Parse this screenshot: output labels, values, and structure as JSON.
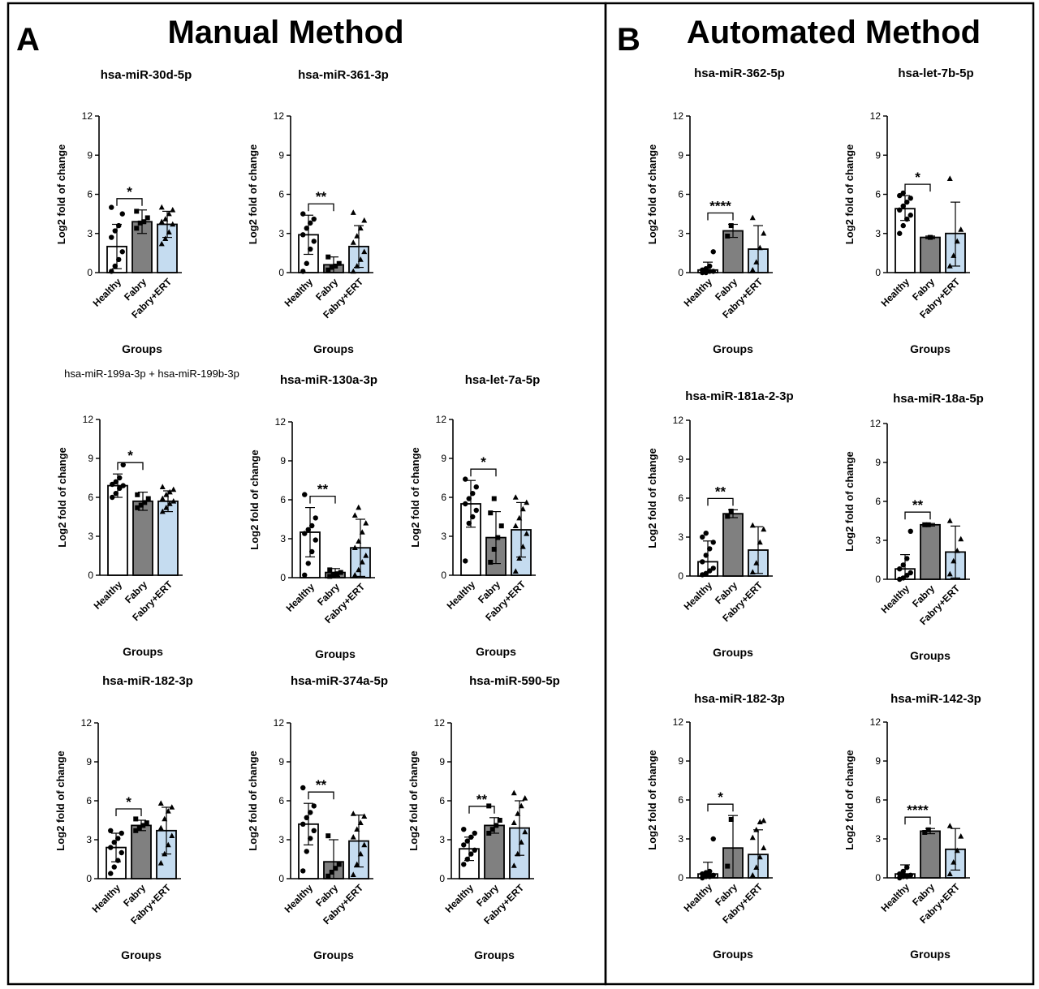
{
  "panels": [
    {
      "letter": "A",
      "title": "Manual Method"
    },
    {
      "letter": "B",
      "title": "Automated Method"
    }
  ],
  "chart_data": [
    {
      "type": "bar",
      "title": "hsa-miR-30d-5p",
      "xlabel": "Groups",
      "ylabel": "Log2 fold of change",
      "categories": [
        "Healthy",
        "Fabry",
        "Fabry+ERT"
      ],
      "values": [
        2.0,
        3.9,
        3.7
      ],
      "error_high": [
        3.7,
        4.8,
        4.7
      ],
      "error_low": [
        0.3,
        3.0,
        2.7
      ],
      "ylim": [
        0,
        12
      ],
      "yticks": [
        0,
        3,
        6,
        9,
        12
      ],
      "significance": {
        "groups": [
          0,
          1
        ],
        "label": "*"
      },
      "points": [
        [
          0.1,
          0.5,
          1.0,
          1.6,
          2.7,
          3.2,
          3.6,
          4.5,
          5.0
        ],
        [
          3.4,
          3.8,
          3.9,
          4.2,
          4.7
        ],
        [
          2.2,
          2.6,
          3.1,
          3.7,
          3.9,
          4.1,
          4.5,
          4.8,
          5.0
        ]
      ]
    },
    {
      "type": "bar",
      "title": "hsa-miR-361-3p",
      "xlabel": "Groups",
      "ylabel": "Log2 fold of change",
      "categories": [
        "Healthy",
        "Fabry",
        "Fabry+ERT"
      ],
      "values": [
        2.9,
        0.6,
        2.0
      ],
      "error_high": [
        4.4,
        1.2,
        3.6
      ],
      "error_low": [
        1.4,
        0.0,
        0.4
      ],
      "ylim": [
        0,
        12
      ],
      "yticks": [
        0,
        3,
        6,
        9,
        12
      ],
      "significance": {
        "groups": [
          0,
          1
        ],
        "label": "**"
      },
      "points": [
        [
          0.1,
          0.7,
          1.8,
          2.4,
          2.9,
          3.4,
          3.8,
          4.1,
          4.5
        ],
        [
          0.2,
          0.4,
          0.5,
          0.7,
          1.2
        ],
        [
          0.1,
          0.5,
          1.0,
          1.6,
          2.3,
          2.8,
          3.4,
          4.0,
          4.6
        ]
      ]
    },
    {
      "type": "bar",
      "title": "hsa-miR-199a-3p + hsa-miR-199b-3p",
      "xlabel": "Groups",
      "ylabel": "Log2 fold of change",
      "categories": [
        "Healthy",
        "Fabry",
        "Fabry+ERT"
      ],
      "values": [
        6.9,
        5.7,
        5.7
      ],
      "error_high": [
        7.8,
        6.4,
        6.5
      ],
      "error_low": [
        6.0,
        5.0,
        4.9
      ],
      "ylim": [
        0,
        12
      ],
      "yticks": [
        0,
        3,
        6,
        9,
        12
      ],
      "significance": {
        "groups": [
          0,
          1
        ],
        "label": "*"
      },
      "points": [
        [
          6.0,
          6.3,
          6.7,
          6.9,
          7.0,
          7.2,
          7.5,
          8.5
        ],
        [
          5.2,
          5.4,
          5.6,
          5.9,
          6.2
        ],
        [
          4.9,
          5.2,
          5.5,
          5.7,
          5.9,
          6.2,
          6.4,
          6.6,
          6.8
        ]
      ]
    },
    {
      "type": "bar",
      "title": "hsa-miR-130a-3p",
      "xlabel": "Groups",
      "ylabel": "Log2 fold of change",
      "categories": [
        "Healthy",
        "Fabry",
        "Fabry+ERT"
      ],
      "values": [
        3.5,
        0.4,
        2.3
      ],
      "error_high": [
        5.4,
        0.7,
        4.5
      ],
      "error_low": [
        1.6,
        0.1,
        0.1
      ],
      "ylim": [
        0,
        12
      ],
      "yticks": [
        0,
        3,
        6,
        9,
        12
      ],
      "significance": {
        "groups": [
          0,
          1
        ],
        "label": "**"
      },
      "points": [
        [
          0.2,
          1.1,
          2.0,
          2.9,
          3.4,
          3.7,
          4.0,
          4.6,
          6.4
        ],
        [
          0.1,
          0.2,
          0.3,
          0.4,
          0.6
        ],
        [
          0.2,
          0.6,
          1.2,
          1.7,
          2.3,
          2.8,
          3.5,
          4.2,
          4.8,
          5.4
        ]
      ]
    },
    {
      "type": "bar",
      "title": "hsa-let-7a-5p",
      "xlabel": "Groups",
      "ylabel": "Log2 fold of change",
      "categories": [
        "Healthy",
        "Fabry",
        "Fabry+ERT"
      ],
      "values": [
        5.5,
        2.9,
        3.5
      ],
      "error_high": [
        7.3,
        4.9,
        5.6
      ],
      "error_low": [
        3.7,
        0.9,
        1.4
      ],
      "ylim": [
        0,
        12
      ],
      "yticks": [
        0,
        3,
        6,
        9,
        12
      ],
      "significance": {
        "groups": [
          0,
          1
        ],
        "label": "*"
      },
      "points": [
        [
          1.1,
          4.0,
          4.5,
          5.0,
          5.5,
          5.9,
          6.3,
          6.8,
          7.4
        ],
        [
          1.0,
          2.0,
          2.9,
          3.8,
          4.8,
          5.9
        ],
        [
          0.3,
          1.3,
          2.2,
          3.2,
          3.8,
          4.4,
          5.1,
          5.6,
          6.0
        ]
      ]
    },
    {
      "type": "bar",
      "title": "hsa-miR-182-3p",
      "xlabel": "Groups",
      "ylabel": "Log2 fold of change",
      "categories": [
        "Healthy",
        "Fabry",
        "Fabry+ERT"
      ],
      "values": [
        2.4,
        4.1,
        3.7
      ],
      "error_high": [
        3.5,
        4.5,
        5.5
      ],
      "error_low": [
        1.3,
        3.7,
        1.9
      ],
      "ylim": [
        0,
        12
      ],
      "yticks": [
        0,
        3,
        6,
        9,
        12
      ],
      "significance": {
        "groups": [
          0,
          1
        ],
        "label": "*"
      },
      "points": [
        [
          0.4,
          0.9,
          1.4,
          2.0,
          2.4,
          2.8,
          3.1,
          3.5,
          3.7
        ],
        [
          3.7,
          3.9,
          4.1,
          4.3,
          4.6
        ],
        [
          1.2,
          1.9,
          2.6,
          3.3,
          3.9,
          4.6,
          5.2,
          5.5,
          5.8
        ]
      ]
    },
    {
      "type": "bar",
      "title": "hsa-miR-374a-5p",
      "xlabel": "Groups",
      "ylabel": "Log2 fold of change",
      "categories": [
        "Healthy",
        "Fabry",
        "Fabry+ERT"
      ],
      "values": [
        4.2,
        1.3,
        2.9
      ],
      "error_high": [
        5.8,
        3.0,
        4.9
      ],
      "error_low": [
        2.6,
        0.0,
        0.9
      ],
      "ylim": [
        0,
        12
      ],
      "yticks": [
        0,
        3,
        6,
        9,
        12
      ],
      "significance": {
        "groups": [
          0,
          1
        ],
        "label": "**"
      },
      "points": [
        [
          0.6,
          2.1,
          3.1,
          3.7,
          4.2,
          4.7,
          5.1,
          5.6,
          7.0
        ],
        [
          0.2,
          0.5,
          0.8,
          1.1,
          3.3
        ],
        [
          0.3,
          1.1,
          1.9,
          2.6,
          3.2,
          3.8,
          4.3,
          4.8,
          5.0
        ]
      ]
    },
    {
      "type": "bar",
      "title": "hsa-miR-590-5p",
      "xlabel": "Groups",
      "ylabel": "Log2 fold of change",
      "categories": [
        "Healthy",
        "Fabry",
        "Fabry+ERT"
      ],
      "values": [
        2.3,
        4.1,
        3.9
      ],
      "error_high": [
        3.2,
        4.7,
        6.0
      ],
      "error_low": [
        1.4,
        3.5,
        1.8
      ],
      "ylim": [
        0,
        12
      ],
      "yticks": [
        0,
        3,
        6,
        9,
        12
      ],
      "significance": {
        "groups": [
          0,
          1
        ],
        "label": "**"
      },
      "points": [
        [
          1.1,
          1.5,
          1.9,
          2.2,
          2.6,
          2.9,
          3.2,
          3.5,
          3.8
        ],
        [
          3.5,
          3.8,
          4.1,
          4.5,
          5.6
        ],
        [
          1.0,
          1.9,
          2.8,
          3.6,
          4.3,
          5.0,
          5.6,
          6.2,
          6.6
        ]
      ]
    },
    {
      "type": "bar",
      "title": "hsa-miR-362-5p",
      "xlabel": "Groups",
      "ylabel": "Log2 fold of change",
      "categories": [
        "Healthy",
        "Fabry",
        "Fabry+ERT"
      ],
      "values": [
        0.2,
        3.2,
        1.8
      ],
      "error_high": [
        0.8,
        3.7,
        3.6
      ],
      "error_low": [
        0.0,
        2.7,
        0.0
      ],
      "ylim": [
        0,
        12
      ],
      "yticks": [
        0,
        3,
        6,
        9,
        12
      ],
      "significance": {
        "groups": [
          0,
          1
        ],
        "label": "****"
      },
      "points": [
        [
          0.0,
          0.0,
          0.1,
          0.1,
          0.2,
          0.3,
          0.5,
          1.6
        ],
        [
          2.8,
          3.6
        ],
        [
          0.2,
          0.8,
          1.9,
          3.0,
          4.2
        ]
      ]
    },
    {
      "type": "bar",
      "title": "hsa-let-7b-5p",
      "xlabel": "Groups",
      "ylabel": "Log2 fold of change",
      "categories": [
        "Healthy",
        "Fabry",
        "Fabry+ERT"
      ],
      "values": [
        4.9,
        2.7,
        3.0
      ],
      "error_high": [
        5.9,
        2.8,
        5.4
      ],
      "error_low": [
        4.0,
        2.6,
        0.5
      ],
      "ylim": [
        0,
        12
      ],
      "yticks": [
        0,
        3,
        6,
        9,
        12
      ],
      "significance": {
        "groups": [
          0,
          1
        ],
        "label": "*"
      },
      "points": [
        [
          3.0,
          3.6,
          4.1,
          4.4,
          4.8,
          5.1,
          5.4,
          5.7,
          5.9,
          6.1
        ],
        [
          2.7
        ],
        [
          0.5,
          1.3,
          2.4,
          3.3,
          7.2
        ]
      ]
    },
    {
      "type": "bar",
      "title": "hsa-miR-181a-2-3p",
      "xlabel": "Groups",
      "ylabel": "Log2 fold of change",
      "categories": [
        "Healthy",
        "Fabry",
        "Fabry+ERT"
      ],
      "values": [
        1.1,
        4.8,
        2.0
      ],
      "error_high": [
        2.7,
        5.1,
        3.8
      ],
      "error_low": [
        0.0,
        4.5,
        0.2
      ],
      "ylim": [
        0,
        12
      ],
      "yticks": [
        0,
        3,
        6,
        9,
        12
      ],
      "significance": {
        "groups": [
          0,
          1
        ],
        "label": "**"
      },
      "points": [
        [
          0.1,
          0.2,
          0.4,
          0.6,
          1.1,
          1.6,
          2.1,
          2.6,
          3.0,
          3.3
        ],
        [
          4.6,
          5.0
        ],
        [
          0.3,
          1.0,
          2.6,
          3.6,
          3.9
        ]
      ]
    },
    {
      "type": "bar",
      "title": "hsa-miR-18a-5p",
      "xlabel": "Groups",
      "ylabel": "Log2 fold of change",
      "categories": [
        "Healthy",
        "Fabry",
        "Fabry+ERT"
      ],
      "values": [
        0.8,
        4.2,
        2.1
      ],
      "error_high": [
        1.9,
        4.3,
        4.1
      ],
      "error_low": [
        0.0,
        4.1,
        0.1
      ],
      "ylim": [
        0,
        12
      ],
      "yticks": [
        0,
        3,
        6,
        9,
        12
      ],
      "significance": {
        "groups": [
          0,
          1
        ],
        "label": "**"
      },
      "points": [
        [
          0.0,
          0.1,
          0.3,
          0.5,
          0.8,
          1.1,
          1.6,
          3.7
        ],
        [
          4.2,
          4.2
        ],
        [
          0.4,
          1.4,
          2.2,
          3.1,
          4.5
        ]
      ]
    },
    {
      "type": "bar",
      "title": "hsa-miR-182-3p",
      "xlabel": "Groups",
      "ylabel": "Log2 fold of change",
      "categories": [
        "Healthy",
        "Fabry",
        "Fabry+ERT"
      ],
      "values": [
        0.3,
        2.3,
        1.8
      ],
      "error_high": [
        1.2,
        4.8,
        3.7
      ],
      "error_low": [
        0.0,
        0.0,
        0.0
      ],
      "ylim": [
        0,
        12
      ],
      "yticks": [
        0,
        3,
        6,
        9,
        12
      ],
      "significance": {
        "groups": [
          0,
          1
        ],
        "label": "*"
      },
      "points": [
        [
          0.0,
          0.1,
          0.1,
          0.2,
          0.3,
          0.4,
          0.5,
          3.0
        ],
        [
          0.9,
          4.5
        ],
        [
          0.2,
          0.8,
          1.6,
          2.3,
          3.1,
          3.7,
          4.3,
          4.4
        ]
      ]
    },
    {
      "type": "bar",
      "title": "hsa-miR-142-3p",
      "xlabel": "Groups",
      "ylabel": "Log2 fold of change",
      "categories": [
        "Healthy",
        "Fabry",
        "Fabry+ERT"
      ],
      "values": [
        0.3,
        3.6,
        2.2
      ],
      "error_high": [
        1.0,
        3.8,
        3.8
      ],
      "error_low": [
        0.0,
        3.4,
        0.6
      ],
      "ylim": [
        0,
        12
      ],
      "yticks": [
        0,
        3,
        6,
        9,
        12
      ],
      "significance": {
        "groups": [
          0,
          1
        ],
        "label": "****"
      },
      "points": [
        [
          0.0,
          0.1,
          0.1,
          0.2,
          0.3,
          0.5,
          0.8
        ],
        [
          3.5,
          3.7
        ],
        [
          0.3,
          1.2,
          2.1,
          3.2,
          4.0
        ]
      ]
    }
  ]
}
